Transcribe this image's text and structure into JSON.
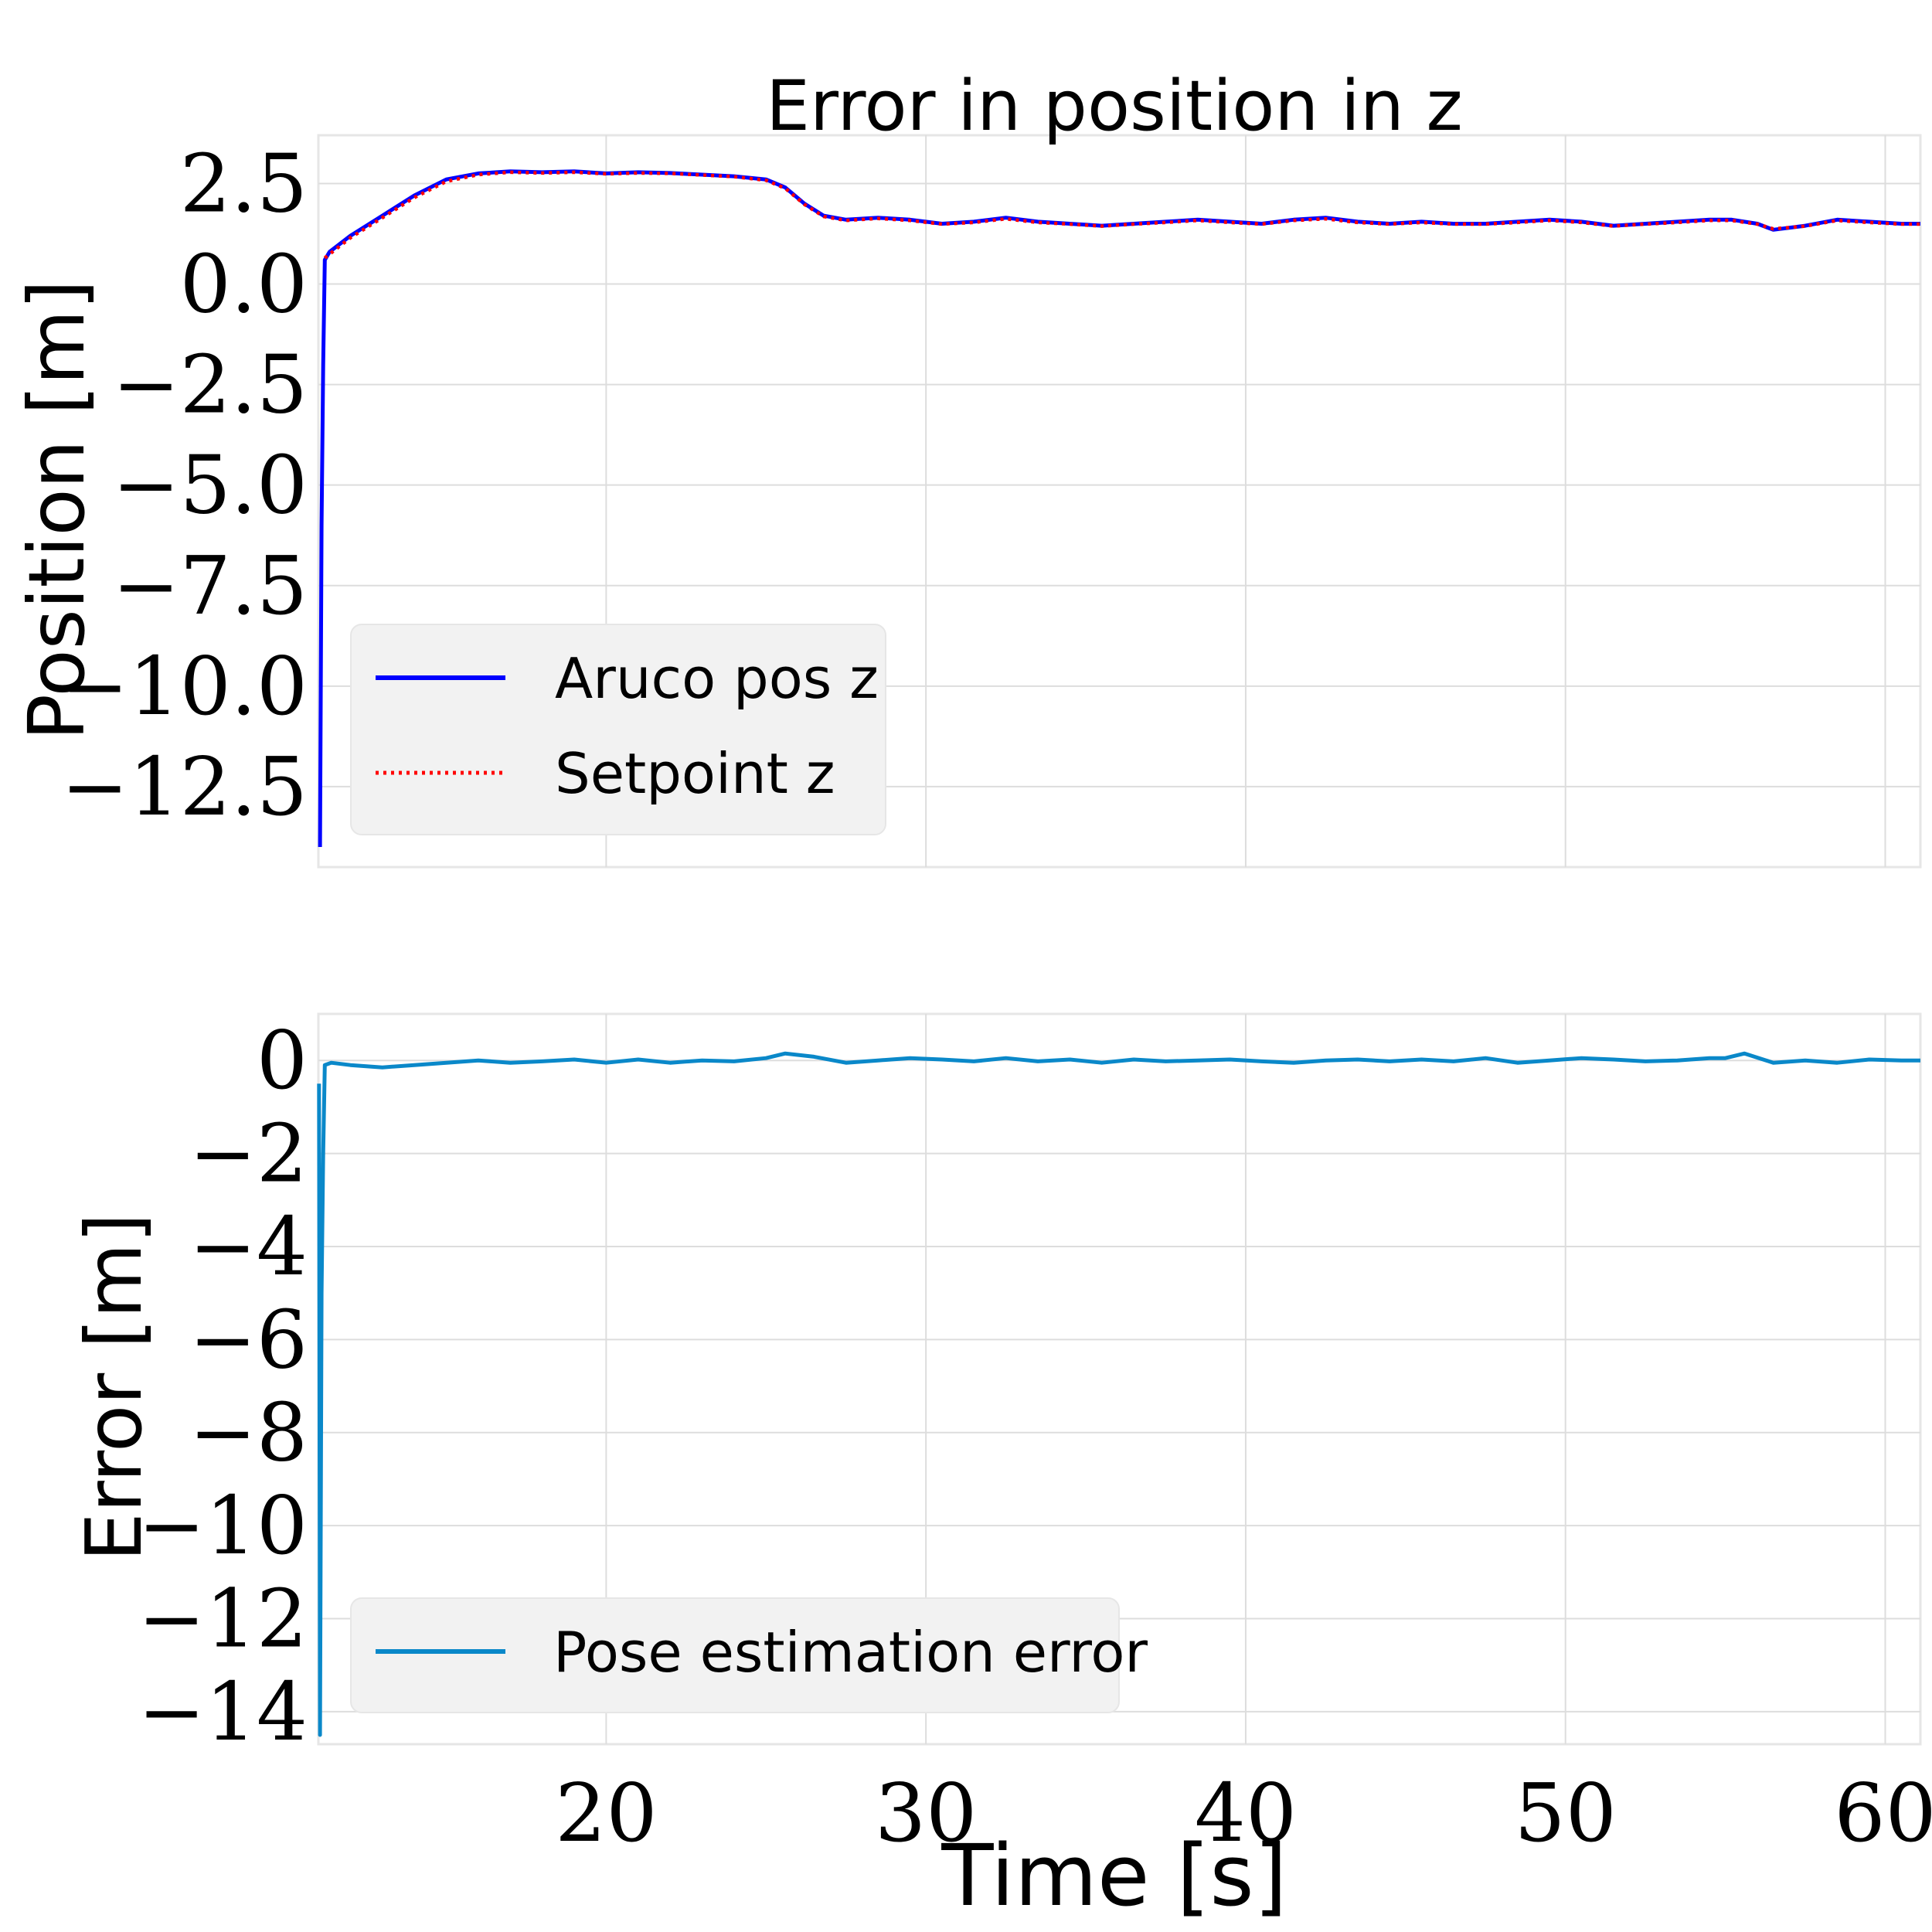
{
  "chart_data": [
    {
      "type": "line",
      "title": "Error in position in z",
      "xlabel": "",
      "ylabel": "Position [m]",
      "xlim": [
        11,
        61.1
      ],
      "ylim": [
        -14.5,
        3.7
      ],
      "yticks": [
        2.5,
        0.0,
        -2.5,
        -5.0,
        -7.5,
        -10.0,
        -12.5
      ],
      "ytick_labels": [
        "2.5",
        "0.0",
        "−2.5",
        "−5.0",
        "−7.5",
        "−10.0",
        "−12.5"
      ],
      "xgrid": [
        20,
        30,
        40,
        50,
        60
      ],
      "grid": true,
      "legend_position": "lower-left",
      "series": [
        {
          "name": "Aruco pos z",
          "color": "#0000ff",
          "style": "solid",
          "x": [
            11.05,
            11.1,
            11.15,
            11.2,
            11.35,
            12,
            13,
            14,
            15,
            16,
            17,
            18,
            19,
            20,
            21,
            22,
            23,
            24,
            25,
            25.6,
            26.2,
            26.8,
            27.5,
            28.5,
            29.5,
            30.5,
            31.5,
            32.5,
            33.5,
            34.5,
            35.5,
            36.5,
            37.5,
            38.5,
            39.5,
            40.5,
            41.5,
            42.5,
            43.5,
            44.5,
            45.5,
            46.5,
            47.5,
            48.5,
            49.5,
            50.5,
            51.5,
            52.5,
            53.5,
            54.5,
            55.2,
            56,
            56.5,
            57.5,
            58.5,
            59.5,
            60.5,
            61.1
          ],
          "y": [
            -14.0,
            -6.0,
            -2.0,
            0.6,
            0.8,
            1.2,
            1.7,
            2.2,
            2.6,
            2.75,
            2.8,
            2.78,
            2.8,
            2.75,
            2.78,
            2.76,
            2.72,
            2.68,
            2.6,
            2.4,
            2.0,
            1.7,
            1.6,
            1.65,
            1.6,
            1.5,
            1.55,
            1.65,
            1.55,
            1.5,
            1.45,
            1.5,
            1.55,
            1.6,
            1.55,
            1.5,
            1.6,
            1.65,
            1.55,
            1.5,
            1.55,
            1.5,
            1.5,
            1.55,
            1.6,
            1.55,
            1.45,
            1.5,
            1.55,
            1.6,
            1.6,
            1.5,
            1.35,
            1.45,
            1.6,
            1.55,
            1.5,
            1.5
          ]
        },
        {
          "name": "Setpoint z",
          "color": "#ff0000",
          "style": "dotted",
          "x": [
            11.2,
            12,
            13,
            14,
            15,
            16,
            17,
            18,
            19,
            20,
            21,
            22,
            23,
            24,
            25,
            25.6,
            26.2,
            26.8,
            27.5,
            28.5,
            29.5,
            30.5,
            31.5,
            32.5,
            33.5,
            34.5,
            35.5,
            36.5,
            37.5,
            38.5,
            39.5,
            40.5,
            41.5,
            42.5,
            43.5,
            44.5,
            45.5,
            46.5,
            47.5,
            48.5,
            49.5,
            50.5,
            51.5,
            52.5,
            53.5,
            54.5,
            55.2,
            56,
            56.5,
            57.5,
            58.5,
            59.5,
            60.5,
            61.1
          ],
          "y": [
            0.65,
            1.15,
            1.65,
            2.15,
            2.55,
            2.72,
            2.78,
            2.76,
            2.78,
            2.74,
            2.76,
            2.75,
            2.71,
            2.67,
            2.58,
            2.38,
            1.98,
            1.68,
            1.58,
            1.63,
            1.58,
            1.49,
            1.53,
            1.62,
            1.53,
            1.49,
            1.44,
            1.49,
            1.53,
            1.58,
            1.53,
            1.49,
            1.58,
            1.62,
            1.53,
            1.49,
            1.53,
            1.49,
            1.49,
            1.53,
            1.58,
            1.53,
            1.44,
            1.49,
            1.53,
            1.58,
            1.58,
            1.49,
            1.37,
            1.44,
            1.58,
            1.53,
            1.49,
            1.49
          ]
        }
      ]
    },
    {
      "type": "line",
      "title": "",
      "xlabel": "Time [s]",
      "ylabel": "Error [m]",
      "xlim": [
        11,
        61.1
      ],
      "ylim": [
        -14.7,
        1.0
      ],
      "yticks": [
        0,
        -2,
        -4,
        -6,
        -8,
        -10,
        -12,
        -14
      ],
      "ytick_labels": [
        "0",
        "−2",
        "−4",
        "−6",
        "−8",
        "−10",
        "−12",
        "−14"
      ],
      "xticks": [
        20,
        30,
        40,
        50,
        60
      ],
      "xtick_labels": [
        "20",
        "30",
        "40",
        "50",
        "60"
      ],
      "grid": true,
      "legend_position": "lower-left",
      "series": [
        {
          "name": "Pose estimation error",
          "color": "#0a88c9",
          "style": "solid",
          "x": [
            11.02,
            11.05,
            11.1,
            11.15,
            11.2,
            11.4,
            12,
            13,
            14,
            15,
            16,
            17,
            18,
            19,
            20,
            21,
            22,
            23,
            24,
            25,
            25.6,
            26.5,
            27.5,
            28.5,
            29.5,
            30.5,
            31.5,
            32.5,
            33.5,
            34.5,
            35.5,
            36.5,
            37.5,
            38.5,
            39.5,
            40.5,
            41.5,
            42.5,
            43.5,
            44.5,
            45.5,
            46.5,
            47.5,
            48.5,
            49.5,
            50.5,
            51.5,
            52.5,
            53.5,
            54.5,
            55,
            55.6,
            56.5,
            57.5,
            58.5,
            59.5,
            60.5,
            61.1
          ],
          "y": [
            -0.5,
            -14.5,
            -5.0,
            -2.0,
            -0.1,
            -0.05,
            -0.1,
            -0.15,
            -0.1,
            -0.05,
            0.0,
            -0.05,
            -0.02,
            0.02,
            -0.05,
            0.02,
            -0.05,
            0.0,
            -0.02,
            0.05,
            0.15,
            0.08,
            -0.05,
            0.0,
            0.05,
            0.02,
            -0.02,
            0.05,
            -0.02,
            0.02,
            -0.05,
            0.02,
            -0.02,
            0.0,
            0.02,
            -0.02,
            -0.05,
            0.0,
            0.02,
            -0.02,
            0.02,
            -0.02,
            0.05,
            -0.05,
            0.0,
            0.05,
            0.02,
            -0.02,
            0.0,
            0.05,
            0.05,
            0.15,
            -0.05,
            0.0,
            -0.05,
            0.02,
            0.0,
            0.0
          ]
        }
      ]
    }
  ]
}
